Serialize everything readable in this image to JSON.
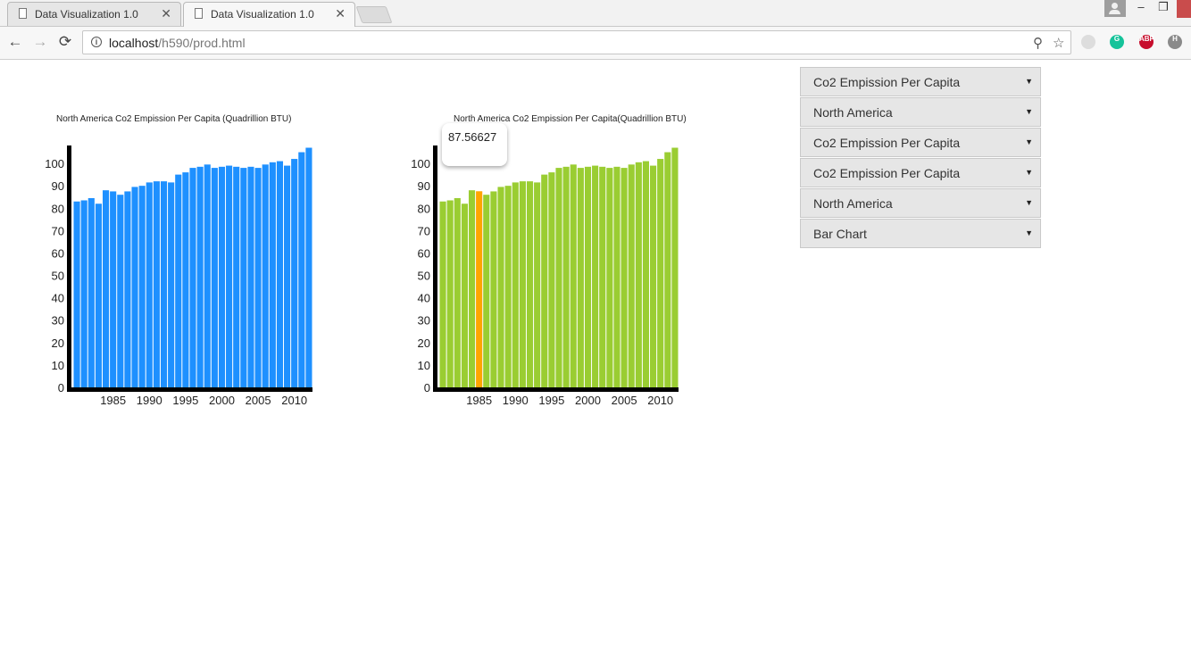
{
  "browser": {
    "tabs": [
      {
        "title": "Data Visualization 1.0",
        "active": false
      },
      {
        "title": "Data Visualization 1.0",
        "active": true
      }
    ],
    "url_host": "localhost",
    "url_path": "/h590/prod.html"
  },
  "tooltip": {
    "value": "87.56627"
  },
  "charts": [
    {
      "title": "North America Co2 Empission Per Capita (Quadrillion BTU)",
      "color": "#1e90ff"
    },
    {
      "title": "North America Co2 Empission Per Capita(Quadrillion BTU)",
      "color": "#9acd32",
      "highlight_color": "#ffa500",
      "highlight_index": 5
    }
  ],
  "chart_data": [
    {
      "type": "bar",
      "title": "North America Co2 Empission Per Capita (Quadrillion BTU)",
      "x": [
        1980,
        1981,
        1982,
        1983,
        1984,
        1985,
        1986,
        1987,
        1988,
        1989,
        1990,
        1991,
        1992,
        1993,
        1994,
        1995,
        1996,
        1997,
        1998,
        1999,
        2000,
        2001,
        2002,
        2003,
        2004,
        2005,
        2006,
        2007,
        2008,
        2009,
        2010,
        2011,
        2012
      ],
      "values": [
        83,
        83.5,
        84.5,
        82,
        88,
        87.5,
        86,
        87.5,
        89.5,
        90,
        91.5,
        92,
        92,
        91.5,
        95,
        96,
        98,
        98.5,
        99.5,
        98,
        98.5,
        99,
        98.5,
        98,
        98.5,
        98,
        99.5,
        100.5,
        101,
        99,
        102,
        105,
        107
      ],
      "xticks": [
        "1985",
        "1990",
        "1995",
        "2000",
        "2005",
        "2010"
      ],
      "yticks": [
        "0",
        "10",
        "20",
        "30",
        "40",
        "50",
        "60",
        "70",
        "80",
        "90",
        "100"
      ],
      "ylim": [
        0,
        108
      ],
      "color": "#1e90ff"
    },
    {
      "type": "bar",
      "title": "North America Co2 Empission Per Capita(Quadrillion BTU)",
      "x": [
        1980,
        1981,
        1982,
        1983,
        1984,
        1985,
        1986,
        1987,
        1988,
        1989,
        1990,
        1991,
        1992,
        1993,
        1994,
        1995,
        1996,
        1997,
        1998,
        1999,
        2000,
        2001,
        2002,
        2003,
        2004,
        2005,
        2006,
        2007,
        2008,
        2009,
        2010,
        2011,
        2012
      ],
      "values": [
        83,
        83.5,
        84.5,
        82,
        88,
        87.56627,
        86,
        87.5,
        89.5,
        90,
        91.5,
        92,
        92,
        91.5,
        95,
        96,
        98,
        98.5,
        99.5,
        98,
        98.5,
        99,
        98.5,
        98,
        98.5,
        98,
        99.5,
        100.5,
        101,
        99,
        102,
        105,
        107
      ],
      "xticks": [
        "1985",
        "1990",
        "1995",
        "2000",
        "2005",
        "2010"
      ],
      "yticks": [
        "0",
        "10",
        "20",
        "30",
        "40",
        "50",
        "60",
        "70",
        "80",
        "90",
        "100"
      ],
      "ylim": [
        0,
        108
      ],
      "color": "#9acd32",
      "highlight_color": "#ffa500",
      "highlight_index": 5
    }
  ],
  "dropdowns": [
    {
      "label": "Co2 Empission Per Capita"
    },
    {
      "label": "North America"
    },
    {
      "label": "Co2 Empission Per Capita"
    },
    {
      "label": "Co2 Empission Per Capita"
    },
    {
      "label": "North America"
    },
    {
      "label": "Bar Chart"
    }
  ]
}
